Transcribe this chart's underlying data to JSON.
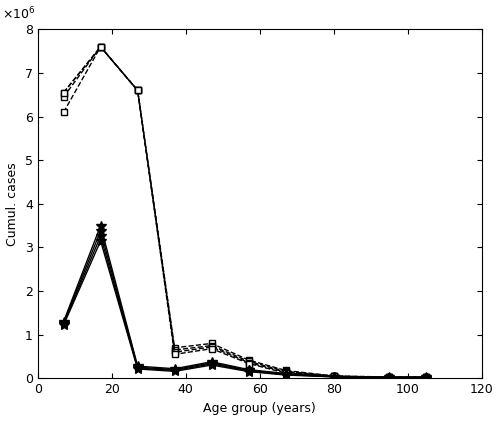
{
  "x": [
    7,
    17,
    27,
    37,
    47,
    57,
    67,
    80,
    95,
    105
  ],
  "dashed_series": [
    [
      6550000,
      7600000,
      6600000,
      700000,
      800000,
      420000,
      180000,
      55000,
      30000,
      30000
    ],
    [
      6450000,
      7600000,
      6600000,
      650000,
      750000,
      390000,
      160000,
      50000,
      28000,
      28000
    ],
    [
      6550000,
      7600000,
      6600000,
      600000,
      720000,
      360000,
      140000,
      47000,
      27000,
      27000
    ],
    [
      6100000,
      7600000,
      6600000,
      550000,
      680000,
      340000,
      120000,
      44000,
      25000,
      25000
    ]
  ],
  "solid_series": [
    [
      1300000,
      3500000,
      280000,
      220000,
      380000,
      200000,
      110000,
      42000,
      22000,
      22000
    ],
    [
      1270000,
      3380000,
      255000,
      200000,
      355000,
      185000,
      95000,
      39000,
      19000,
      19000
    ],
    [
      1250000,
      3260000,
      235000,
      180000,
      330000,
      170000,
      85000,
      36000,
      17000,
      17000
    ],
    [
      1220000,
      3150000,
      215000,
      160000,
      305000,
      155000,
      75000,
      33000,
      15000,
      15000
    ]
  ],
  "xlabel": "Age group (years)",
  "ylabel": "Cumul. cases",
  "xlim": [
    0,
    120
  ],
  "ylim": [
    0,
    8000000
  ],
  "xticks": [
    0,
    20,
    40,
    60,
    80,
    100,
    120
  ],
  "yticks": [
    0,
    1000000,
    2000000,
    3000000,
    4000000,
    5000000,
    6000000,
    7000000,
    8000000
  ],
  "line_color": "black",
  "figsize": [
    5.0,
    4.21
  ],
  "dpi": 100
}
